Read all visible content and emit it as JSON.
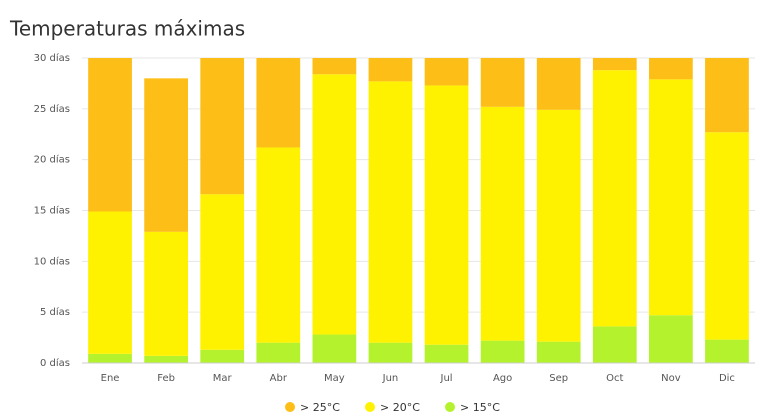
{
  "chart_data": {
    "type": "stacked_bar",
    "title": "Temperaturas máximas",
    "categories": [
      "Ene",
      "Feb",
      "Mar",
      "Abr",
      "May",
      "Jun",
      "Jul",
      "Ago",
      "Sep",
      "Oct",
      "Nov",
      "Dic"
    ],
    "series": [
      {
        "name": "> 25°C",
        "color": "#fdbe17",
        "values": [
          15.1,
          15.1,
          13.4,
          8.8,
          1.6,
          2.3,
          2.7,
          4.8,
          5.1,
          1.2,
          2.1,
          7.3
        ]
      },
      {
        "name": "> 20°C",
        "color": "#fff200",
        "values": [
          14.0,
          12.2,
          15.3,
          19.2,
          25.6,
          25.7,
          25.5,
          23.0,
          22.8,
          25.2,
          23.2,
          20.4
        ]
      },
      {
        "name": "> 15°C",
        "color": "#b5f22e",
        "values": [
          0.9,
          0.7,
          1.3,
          2.0,
          2.8,
          2.0,
          1.8,
          2.2,
          2.1,
          3.6,
          4.7,
          2.3
        ]
      }
    ],
    "ylim": [
      0,
      30
    ],
    "yticks": [
      {
        "value": 0,
        "label": "0 días"
      },
      {
        "value": 5,
        "label": "5 días"
      },
      {
        "value": 10,
        "label": "10 días"
      },
      {
        "value": 15,
        "label": "15 días"
      },
      {
        "value": 20,
        "label": "20 días"
      },
      {
        "value": 25,
        "label": "25 días"
      },
      {
        "value": 30,
        "label": "30 días"
      }
    ],
    "grid": true,
    "legend": "bottom"
  }
}
